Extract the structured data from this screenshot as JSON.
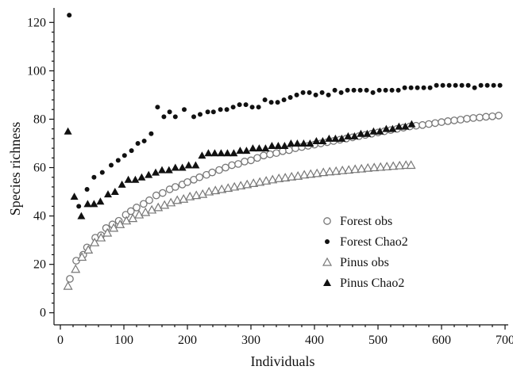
{
  "chart_data": {
    "type": "scatter",
    "xlabel": "Individuals",
    "ylabel": "Species richness",
    "xlim": [
      -10,
      705
    ],
    "ylim": [
      -5,
      126
    ],
    "xticks": [
      0,
      100,
      200,
      300,
      400,
      500,
      600,
      700
    ],
    "yticks": [
      0,
      20,
      40,
      60,
      80,
      100,
      120
    ],
    "grid": false,
    "legend_position": "lower-right",
    "series": [
      {
        "name": "Forest obs",
        "marker": "open-circle",
        "color": "#777777",
        "points": [
          [
            15,
            14
          ],
          [
            25,
            21.5
          ],
          [
            36,
            24
          ],
          [
            42,
            27
          ],
          [
            55,
            31
          ],
          [
            64,
            32
          ],
          [
            72,
            35
          ],
          [
            82,
            36.5
          ],
          [
            92,
            38
          ],
          [
            103,
            40.5
          ],
          [
            111,
            42
          ],
          [
            120,
            43.5
          ],
          [
            131,
            45
          ],
          [
            140,
            46.5
          ],
          [
            151,
            48.5
          ],
          [
            161,
            49.5
          ],
          [
            172,
            51
          ],
          [
            181,
            52
          ],
          [
            192,
            53
          ],
          [
            200,
            54
          ],
          [
            210,
            55
          ],
          [
            219,
            56
          ],
          [
            230,
            57
          ],
          [
            239,
            58
          ],
          [
            250,
            59
          ],
          [
            260,
            60
          ],
          [
            270,
            61
          ],
          [
            280,
            61.5
          ],
          [
            290,
            62.5
          ],
          [
            300,
            63
          ],
          [
            310,
            64
          ],
          [
            320,
            65
          ],
          [
            330,
            65.5
          ],
          [
            340,
            66
          ],
          [
            350,
            66.8
          ],
          [
            360,
            67.2
          ],
          [
            370,
            68
          ],
          [
            380,
            68.5
          ],
          [
            390,
            69
          ],
          [
            400,
            69.5
          ],
          [
            410,
            70
          ],
          [
            420,
            70.5
          ],
          [
            430,
            71
          ],
          [
            440,
            71.5
          ],
          [
            450,
            72
          ],
          [
            460,
            72.5
          ],
          [
            470,
            73
          ],
          [
            480,
            73.5
          ],
          [
            490,
            74
          ],
          [
            500,
            74.5
          ],
          [
            510,
            75
          ],
          [
            520,
            75.5
          ],
          [
            530,
            76
          ],
          [
            540,
            76.5
          ],
          [
            550,
            77
          ],
          [
            560,
            77.3
          ],
          [
            570,
            77.6
          ],
          [
            580,
            78
          ],
          [
            590,
            78.4
          ],
          [
            600,
            78.8
          ],
          [
            610,
            79.2
          ],
          [
            620,
            79.5
          ],
          [
            630,
            79.8
          ],
          [
            640,
            80.2
          ],
          [
            650,
            80.5
          ],
          [
            660,
            80.7
          ],
          [
            670,
            81
          ],
          [
            680,
            81.2
          ],
          [
            690,
            81.5
          ]
        ]
      },
      {
        "name": "Forest Chao2",
        "marker": "filled-circle",
        "color": "#111111",
        "points": [
          [
            14,
            123
          ],
          [
            29,
            44
          ],
          [
            42,
            51
          ],
          [
            53,
            56
          ],
          [
            66,
            58
          ],
          [
            80,
            61
          ],
          [
            91,
            63
          ],
          [
            101,
            65
          ],
          [
            112,
            67
          ],
          [
            122,
            70
          ],
          [
            132,
            71
          ],
          [
            143,
            74
          ],
          [
            153,
            85
          ],
          [
            163,
            81
          ],
          [
            172,
            83
          ],
          [
            181,
            81
          ],
          [
            195,
            84
          ],
          [
            210,
            81
          ],
          [
            220,
            82
          ],
          [
            232,
            83
          ],
          [
            241,
            83
          ],
          [
            252,
            84
          ],
          [
            262,
            84
          ],
          [
            272,
            85
          ],
          [
            282,
            86
          ],
          [
            292,
            86
          ],
          [
            302,
            85
          ],
          [
            312,
            85
          ],
          [
            322,
            88
          ],
          [
            332,
            87
          ],
          [
            342,
            87
          ],
          [
            352,
            88
          ],
          [
            362,
            89
          ],
          [
            372,
            90
          ],
          [
            382,
            91
          ],
          [
            392,
            91
          ],
          [
            402,
            90
          ],
          [
            412,
            91
          ],
          [
            422,
            90
          ],
          [
            432,
            92
          ],
          [
            442,
            91
          ],
          [
            452,
            92
          ],
          [
            462,
            92
          ],
          [
            472,
            92
          ],
          [
            482,
            92
          ],
          [
            492,
            91
          ],
          [
            502,
            92
          ],
          [
            512,
            92
          ],
          [
            522,
            92
          ],
          [
            532,
            92
          ],
          [
            542,
            93
          ],
          [
            552,
            93
          ],
          [
            562,
            93
          ],
          [
            572,
            93
          ],
          [
            582,
            93
          ],
          [
            592,
            94
          ],
          [
            602,
            94
          ],
          [
            612,
            94
          ],
          [
            622,
            94
          ],
          [
            632,
            94
          ],
          [
            642,
            94
          ],
          [
            652,
            93
          ],
          [
            662,
            94
          ],
          [
            672,
            94
          ],
          [
            682,
            94
          ],
          [
            692,
            94
          ]
        ]
      },
      {
        "name": "Pinus obs",
        "marker": "open-triangle",
        "color": "#777777",
        "points": [
          [
            12,
            11
          ],
          [
            24,
            18
          ],
          [
            34,
            23
          ],
          [
            44,
            26
          ],
          [
            54,
            29
          ],
          [
            64,
            31
          ],
          [
            74,
            33
          ],
          [
            84,
            35
          ],
          [
            94,
            36.5
          ],
          [
            104,
            38
          ],
          [
            114,
            39
          ],
          [
            124,
            40.5
          ],
          [
            134,
            41.5
          ],
          [
            144,
            42.5
          ],
          [
            154,
            43.5
          ],
          [
            164,
            44.5
          ],
          [
            174,
            45.5
          ],
          [
            184,
            46.5
          ],
          [
            194,
            47
          ],
          [
            204,
            48
          ],
          [
            214,
            48.5
          ],
          [
            224,
            49
          ],
          [
            234,
            50
          ],
          [
            244,
            50.5
          ],
          [
            254,
            51
          ],
          [
            264,
            51.5
          ],
          [
            274,
            52
          ],
          [
            284,
            52.5
          ],
          [
            294,
            53
          ],
          [
            304,
            53.5
          ],
          [
            314,
            54
          ],
          [
            324,
            54.5
          ],
          [
            334,
            55
          ],
          [
            344,
            55.5
          ],
          [
            354,
            55.8
          ],
          [
            364,
            56.2
          ],
          [
            374,
            56.5
          ],
          [
            384,
            57
          ],
          [
            394,
            57.3
          ],
          [
            404,
            57.6
          ],
          [
            414,
            58
          ],
          [
            424,
            58.3
          ],
          [
            434,
            58.5
          ],
          [
            444,
            58.8
          ],
          [
            454,
            59
          ],
          [
            464,
            59.3
          ],
          [
            474,
            59.5
          ],
          [
            484,
            59.8
          ],
          [
            494,
            60
          ],
          [
            504,
            60.2
          ],
          [
            514,
            60.4
          ],
          [
            524,
            60.6
          ],
          [
            534,
            60.8
          ],
          [
            544,
            61
          ],
          [
            552,
            61
          ]
        ]
      },
      {
        "name": "Pinus Chao2",
        "marker": "filled-triangle",
        "color": "#111111",
        "points": [
          [
            12,
            75
          ],
          [
            22,
            48
          ],
          [
            33,
            40
          ],
          [
            43,
            45
          ],
          [
            53,
            45
          ],
          [
            63,
            46
          ],
          [
            75,
            49
          ],
          [
            86,
            50
          ],
          [
            97,
            53
          ],
          [
            107,
            55
          ],
          [
            118,
            55
          ],
          [
            128,
            56
          ],
          [
            139,
            57
          ],
          [
            150,
            58
          ],
          [
            160,
            59
          ],
          [
            171,
            59
          ],
          [
            181,
            60
          ],
          [
            192,
            60
          ],
          [
            202,
            61
          ],
          [
            213,
            61
          ],
          [
            223,
            65
          ],
          [
            233,
            66
          ],
          [
            243,
            66
          ],
          [
            253,
            66
          ],
          [
            263,
            66
          ],
          [
            273,
            66
          ],
          [
            283,
            67
          ],
          [
            293,
            67
          ],
          [
            303,
            68
          ],
          [
            313,
            68
          ],
          [
            323,
            68
          ],
          [
            333,
            69
          ],
          [
            343,
            69
          ],
          [
            353,
            69
          ],
          [
            363,
            70
          ],
          [
            373,
            70
          ],
          [
            383,
            70
          ],
          [
            393,
            70
          ],
          [
            403,
            71
          ],
          [
            413,
            71
          ],
          [
            423,
            72
          ],
          [
            433,
            72
          ],
          [
            443,
            72
          ],
          [
            453,
            73
          ],
          [
            463,
            73
          ],
          [
            473,
            74
          ],
          [
            483,
            74
          ],
          [
            493,
            75
          ],
          [
            503,
            75
          ],
          [
            513,
            76
          ],
          [
            523,
            76
          ],
          [
            533,
            77
          ],
          [
            543,
            77
          ],
          [
            553,
            78
          ]
        ]
      }
    ]
  }
}
